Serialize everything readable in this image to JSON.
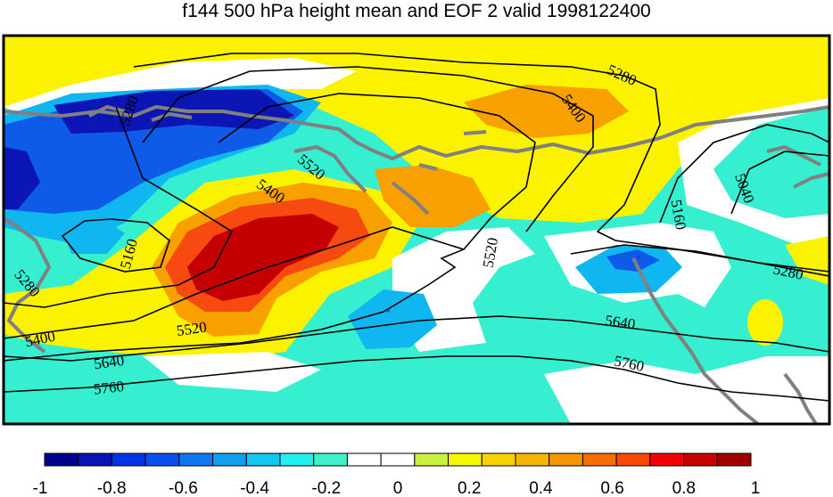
{
  "title": "f144 500 hPa height mean and EOF 2 valid 1998122400",
  "map": {
    "fill_colors": {
      "strong_negative": "#0c16b4",
      "negative": "#0f5ae6",
      "weak_negative": "#10b6f0",
      "slight_negative": "#35efd0",
      "neutral": "#ffffff",
      "slight_positive": "#fbf200",
      "positive": "#f7a000",
      "strong_positive": "#f74a10",
      "max_positive": "#c40000"
    },
    "coast_color": "#808080",
    "contour_labels": [
      "5280",
      "5400",
      "5520",
      "5160",
      "5280",
      "5400",
      "5520",
      "5640",
      "5760",
      "5520",
      "5640",
      "5760",
      "5160",
      "5040",
      "5280",
      "5400",
      "5280"
    ]
  },
  "colorbar": {
    "colors": [
      "#00008c",
      "#0a14b4",
      "#0032e6",
      "#0a50f0",
      "#0f78f0",
      "#10a0f0",
      "#10c8f0",
      "#20f0f0",
      "#40f0c8",
      "#ffffff",
      "#ffffff",
      "#c8f040",
      "#f7f700",
      "#f7d200",
      "#f7b400",
      "#f79600",
      "#f76e00",
      "#f74a00",
      "#f00000",
      "#c80000",
      "#a00000"
    ],
    "tick_labels": [
      "-1",
      "-0.8",
      "-0.6",
      "-0.4",
      "-0.2",
      "0",
      "0.2",
      "0.4",
      "0.6",
      "0.8",
      "1"
    ]
  }
}
